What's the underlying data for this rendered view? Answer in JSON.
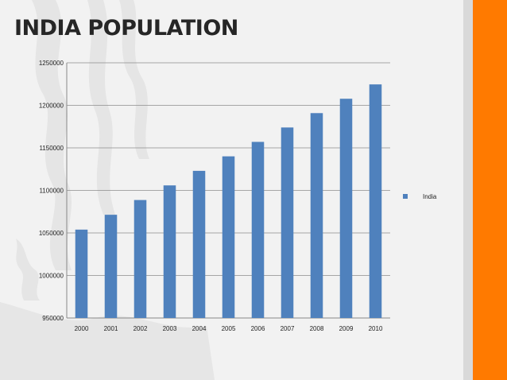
{
  "slide": {
    "title": "INDIA POPULATION",
    "accent_color": "#ff7a00",
    "sidebar_gray": "#d9d9d9"
  },
  "chart_data": {
    "type": "bar",
    "categories": [
      "2000",
      "2001",
      "2002",
      "2003",
      "2004",
      "2005",
      "2006",
      "2007",
      "2008",
      "2009",
      "2010"
    ],
    "series": [
      {
        "name": "India",
        "color": "#4f81bd",
        "values": [
          1053898,
          1071374,
          1088694,
          1105887,
          1122991,
          1140043,
          1157039,
          1173972,
          1190864,
          1207740,
          1224615
        ]
      }
    ],
    "ylim": [
      950000,
      1250000
    ],
    "yticks": [
      "950000",
      "1000000",
      "1050000",
      "1100000",
      "1150000",
      "1200000",
      "1250000"
    ],
    "grid": true,
    "legend_position": "right"
  }
}
